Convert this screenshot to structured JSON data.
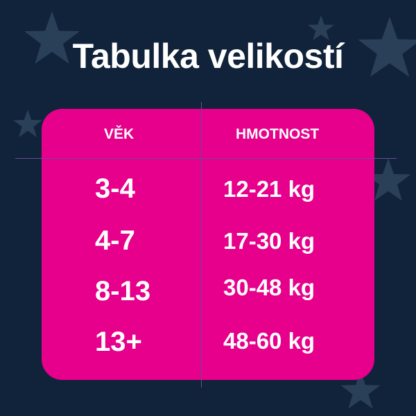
{
  "title": "Tabulka velikostí",
  "colors": {
    "background": "#11233a",
    "card": "#e6008b",
    "star": "#2a3f58",
    "divider": "#6b4a9c"
  },
  "table": {
    "headers": [
      "VĚK",
      "HMOTNOST"
    ],
    "rows": [
      {
        "age": "3-4",
        "weight": "12-21 kg"
      },
      {
        "age": "4-7",
        "weight": "17-30 kg"
      },
      {
        "age": "8-13",
        "weight": "30-48 kg"
      },
      {
        "age": "13+",
        "weight": "48-60 kg"
      }
    ]
  }
}
